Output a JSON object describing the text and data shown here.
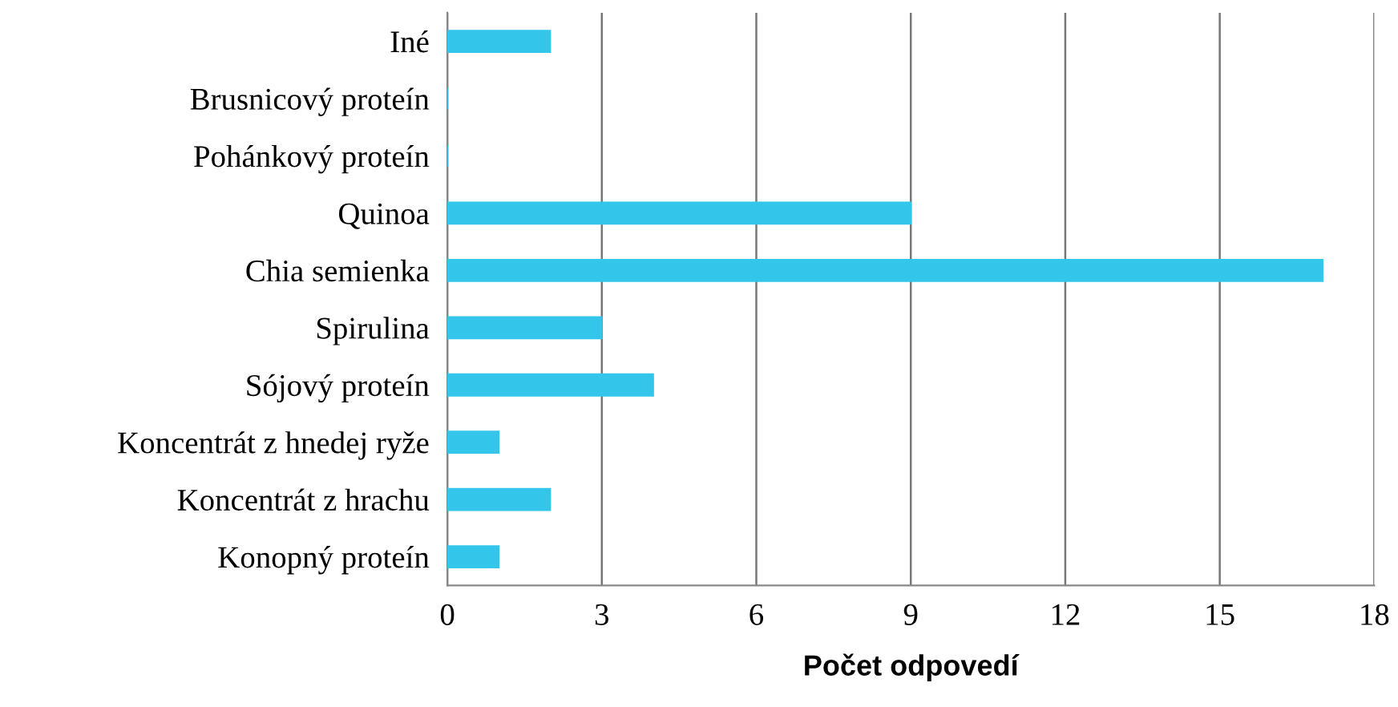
{
  "chart_data": {
    "type": "bar",
    "orientation": "horizontal",
    "xlabel": "Počet odpovedí",
    "categories": [
      "Iné",
      "Brusnicový proteín",
      "Pohánkový proteín",
      "Quinoa",
      "Chia semienka",
      "Spirulina",
      "Sójový proteín",
      "Koncentrát z hnedej ryže",
      "Koncentrát z hrachu",
      "Konopný proteín"
    ],
    "values": [
      2,
      0,
      0,
      9,
      17,
      3,
      4,
      1,
      2,
      1
    ],
    "color": "#33c6ea",
    "xlim": [
      0,
      18
    ],
    "xticks": [
      0,
      3,
      6,
      9,
      12,
      15,
      18
    ],
    "grid": "x",
    "legend": false
  }
}
